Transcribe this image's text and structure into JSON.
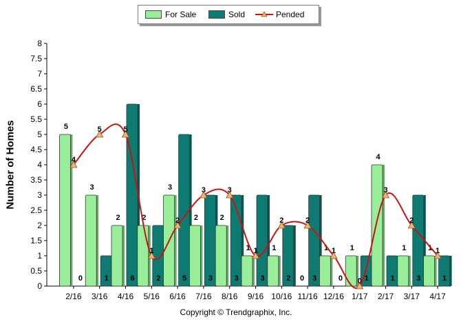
{
  "chart_data": {
    "type": "bar",
    "categories": [
      "2/16",
      "3/16",
      "4/16",
      "5/16",
      "6/16",
      "7/16",
      "8/16",
      "9/16",
      "10/16",
      "11/16",
      "12/16",
      "1/17",
      "2/17",
      "3/17",
      "4/17"
    ],
    "series": [
      {
        "name": "For Sale",
        "type": "bar",
        "color": "#99ee99",
        "values": [
          5,
          3,
          2,
          2,
          3,
          2,
          2,
          1,
          1,
          0,
          1,
          1,
          4,
          1,
          1
        ]
      },
      {
        "name": "Sold",
        "type": "bar",
        "color": "#0e7b73",
        "values": [
          0,
          1,
          6,
          2,
          5,
          3,
          3,
          3,
          2,
          3,
          0,
          1,
          1,
          3,
          1
        ]
      },
      {
        "name": "Pended",
        "type": "line",
        "color": "#cc1111",
        "values": [
          4,
          5,
          5,
          1,
          2,
          3,
          3,
          1,
          2,
          2,
          1,
          0,
          3,
          2,
          1
        ]
      }
    ],
    "xlabel": "",
    "ylabel": "Number of Homes",
    "ylim": [
      0,
      8
    ],
    "yticks": [
      "0",
      "0.5",
      "1",
      "1.5",
      "2",
      "2.5",
      "3",
      "3.5",
      "4",
      "4.5",
      "5",
      "5.5",
      "6",
      "6.5",
      "7",
      "7.5",
      "8"
    ],
    "legend_position": "top-center",
    "grid": false
  },
  "copyright": "Copyright © Trendgraphix, Inc."
}
